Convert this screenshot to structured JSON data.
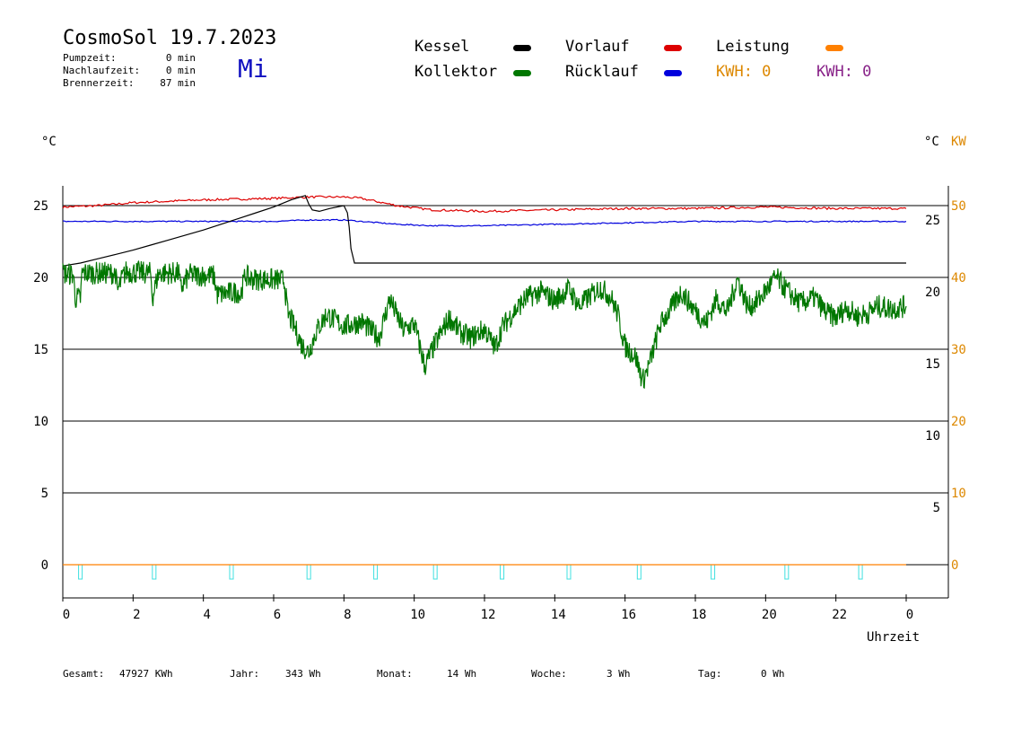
{
  "header": {
    "title": "CosmoSol 19.7.2023",
    "day": "Mi",
    "stats": [
      {
        "label": "Pumpzeit:",
        "value": "0 min"
      },
      {
        "label": "Nachlaufzeit:",
        "value": "0 min"
      },
      {
        "label": "Brennerzeit:",
        "value": "87 min"
      }
    ]
  },
  "legend": {
    "kessel": {
      "label": "Kessel",
      "color": "#000000"
    },
    "kollektor": {
      "label": "Kollektor",
      "color": "#007700"
    },
    "vorlauf": {
      "label": "Vorlauf",
      "color": "#dd0000"
    },
    "ruecklauf": {
      "label": "Rücklauf",
      "color": "#0000dd"
    },
    "leistung": {
      "label": "Leistung",
      "color": "#ff8000"
    },
    "kwh1": {
      "text": "KWH: 0",
      "color": "#dd8800"
    },
    "kwh2": {
      "text": "KWH: 0",
      "color": "#882288"
    }
  },
  "axes": {
    "left_unit": "°C",
    "right_unit_c": "°C",
    "right_unit_kw": "KW",
    "x_title": "Uhrzeit",
    "x_ticks": [
      "0",
      "2",
      "4",
      "6",
      "8",
      "10",
      "12",
      "14",
      "16",
      "18",
      "20",
      "22",
      "0"
    ],
    "left_ticks": [
      "0",
      "5",
      "10",
      "15",
      "20",
      "25"
    ],
    "right_c_ticks": [
      "5",
      "10",
      "15",
      "20",
      "25"
    ],
    "right_kw_ticks": [
      "0",
      "10",
      "20",
      "30",
      "40",
      "50"
    ]
  },
  "footer": {
    "gesamt_label": "Gesamt:",
    "gesamt_value": "47927 KWh",
    "jahr_label": "Jahr:",
    "jahr_value": "343 Wh",
    "monat_label": "Monat:",
    "monat_value": "14 Wh",
    "woche_label": "Woche:",
    "woche_value": "3 Wh",
    "tag_label": "Tag:",
    "tag_value": "0 Wh"
  },
  "chart_data": {
    "type": "line",
    "xlabel": "Uhrzeit",
    "ylabel": "°C",
    "xlim": [
      0,
      24
    ],
    "ylim": [
      -2,
      27
    ],
    "grid": true,
    "series": [
      {
        "name": "Vorlauf",
        "color": "#dd0000",
        "x": [
          0,
          1,
          2,
          4,
          6,
          7,
          8,
          8.5,
          9.5,
          10.5,
          12,
          14,
          16,
          18,
          20,
          22,
          24
        ],
        "y": [
          24.9,
          25.0,
          25.2,
          25.4,
          25.5,
          25.6,
          25.6,
          25.5,
          25.0,
          24.7,
          24.6,
          24.7,
          24.8,
          24.8,
          24.9,
          24.8,
          24.8
        ]
      },
      {
        "name": "Rücklauf",
        "color": "#0000dd",
        "x": [
          0,
          2,
          4,
          6,
          7,
          8,
          8.5,
          9.5,
          10.5,
          12,
          14,
          16,
          18,
          20,
          22,
          24
        ],
        "y": [
          23.9,
          23.9,
          23.9,
          23.9,
          24.0,
          24.0,
          23.9,
          23.7,
          23.6,
          23.6,
          23.7,
          23.8,
          23.9,
          23.9,
          23.9,
          23.9
        ]
      },
      {
        "name": "Kessel",
        "color": "#000000",
        "x": [
          0,
          0.5,
          1,
          2,
          3,
          4,
          5,
          6,
          6.5,
          6.9,
          7.0,
          7.1,
          7.3,
          7.6,
          8.0,
          8.1,
          8.15,
          8.2,
          8.3,
          24
        ],
        "y": [
          20.8,
          21.0,
          21.3,
          21.9,
          22.6,
          23.3,
          24.1,
          24.9,
          25.4,
          25.7,
          25.1,
          24.7,
          24.6,
          24.8,
          25.0,
          24.5,
          23.5,
          22.0,
          21.0,
          21.0
        ]
      },
      {
        "name": "Kollektor",
        "color": "#007700",
        "x": [
          0,
          0.3,
          0.35,
          0.5,
          0.55,
          1.5,
          1.55,
          1.7,
          1.8,
          2.5,
          2.55,
          2.7,
          2.75,
          3.3,
          3.35,
          3.6,
          4.3,
          4.4,
          5.0,
          5.05,
          5.2,
          5.3,
          6.3,
          6.4,
          6.6,
          6.8,
          7.0,
          7.2,
          7.5,
          8.0,
          8.5,
          9.0,
          9.3,
          9.7,
          10.0,
          10.3,
          10.6,
          11.0,
          11.3,
          11.6,
          12.0,
          12.3,
          12.5,
          12.8,
          13.2,
          13.6,
          14.0,
          14.4,
          14.7,
          15.0,
          15.3,
          15.6,
          15.8,
          16.0,
          16.3,
          16.5,
          16.7,
          17.0,
          17.3,
          17.6,
          17.9,
          18.3,
          18.6,
          18.9,
          19.2,
          19.5,
          19.8,
          20.1,
          20.3,
          20.5,
          20.8,
          21.0,
          21.4,
          21.7,
          22.0,
          22.3,
          22.6,
          22.9,
          23.2,
          23.6,
          24.0
        ],
        "y": [
          20.3,
          20.2,
          18.6,
          18.5,
          20.3,
          20.3,
          19.0,
          20.0,
          20.4,
          20.3,
          18.6,
          20.1,
          20.3,
          20.3,
          19.2,
          20.2,
          20.1,
          18.8,
          19.0,
          18.7,
          20.2,
          19.9,
          19.8,
          17.5,
          16.5,
          15.3,
          14.8,
          16.2,
          17.4,
          16.6,
          16.9,
          15.8,
          18.5,
          16.3,
          16.8,
          13.8,
          15.4,
          17.2,
          16.2,
          15.8,
          16.4,
          15.1,
          16.5,
          17.5,
          18.6,
          19.0,
          18.4,
          19.2,
          18.0,
          18.7,
          19.3,
          18.6,
          17.4,
          15.2,
          14.5,
          12.8,
          14.0,
          16.7,
          17.8,
          19.0,
          18.0,
          16.8,
          18.5,
          17.6,
          19.9,
          17.9,
          18.4,
          19.4,
          20.0,
          19.4,
          18.6,
          18.2,
          18.6,
          17.6,
          17.2,
          17.9,
          17.3,
          17.5,
          18.0,
          17.8,
          18.0
        ]
      },
      {
        "name": "Leistung",
        "color": "#ff8000",
        "x": [
          0,
          24
        ],
        "y": [
          0,
          0
        ]
      }
    ],
    "pump_markers": {
      "color": "#40e0e0",
      "x": [
        0.5,
        2.6,
        4.8,
        7.0,
        8.9,
        10.6,
        12.5,
        14.4,
        16.4,
        18.5,
        20.6,
        22.7
      ]
    }
  }
}
